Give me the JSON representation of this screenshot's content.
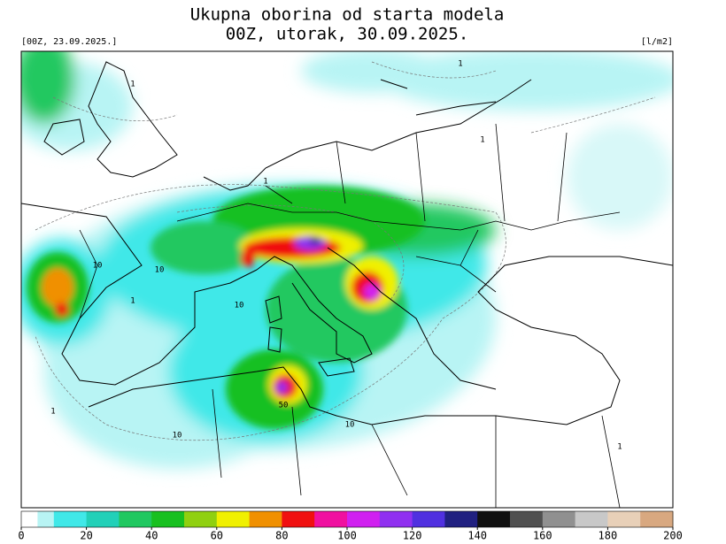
{
  "header": {
    "title": [
      "Ukupna oborina od starta modela",
      "00Z, utorak, 30.09.2025."
    ],
    "init": "[00Z, 23.09.2025.]",
    "unit": "[l/m2]"
  },
  "map": {
    "contour_labels": [
      "1",
      "1",
      "1",
      "1",
      "10",
      "10",
      "1",
      "10",
      "50",
      "10",
      "1",
      "10",
      "1"
    ]
  },
  "colorbar": {
    "range": [
      0,
      200
    ],
    "ticks": [
      0,
      20,
      40,
      60,
      80,
      100,
      120,
      140,
      160,
      180,
      200
    ],
    "stops": [
      {
        "value": 0,
        "color": "#ffffff"
      },
      {
        "value": 5,
        "color": "#b8f4f4"
      },
      {
        "value": 10,
        "color": "#40e8e8"
      },
      {
        "value": 20,
        "color": "#22d0b8"
      },
      {
        "value": 30,
        "color": "#20c860"
      },
      {
        "value": 40,
        "color": "#18c020"
      },
      {
        "value": 50,
        "color": "#90d010"
      },
      {
        "value": 60,
        "color": "#f0f000"
      },
      {
        "value": 70,
        "color": "#f09000"
      },
      {
        "value": 80,
        "color": "#f01010"
      },
      {
        "value": 90,
        "color": "#f010a0"
      },
      {
        "value": 100,
        "color": "#d020f0"
      },
      {
        "value": 110,
        "color": "#9030f0"
      },
      {
        "value": 120,
        "color": "#5030e0"
      },
      {
        "value": 130,
        "color": "#202080"
      },
      {
        "value": 140,
        "color": "#101010"
      },
      {
        "value": 150,
        "color": "#505050"
      },
      {
        "value": 160,
        "color": "#909090"
      },
      {
        "value": 170,
        "color": "#c8c8c8"
      },
      {
        "value": 180,
        "color": "#e8d0b8"
      },
      {
        "value": 190,
        "color": "#d8a880"
      }
    ]
  }
}
